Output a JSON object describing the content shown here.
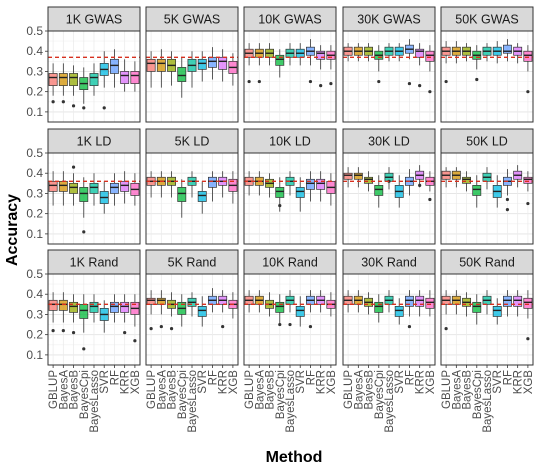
{
  "chart_data": {
    "type": "boxplot",
    "xlabel": "Method",
    "ylabel": "Accuracy",
    "ylim": [
      0.05,
      0.5
    ],
    "yticks": [
      0.1,
      0.2,
      0.3,
      0.4,
      0.5
    ],
    "ytick_labels": [
      "0.1",
      "0.2",
      "0.3",
      "0.4",
      "0.5"
    ],
    "methods": [
      "GBLUP",
      "BayesA",
      "BayesB",
      "BayesCpi",
      "BayesLasso",
      "SVR",
      "RF",
      "KRR",
      "XGB"
    ],
    "method_colors": [
      "#F8766D",
      "#D39200",
      "#93AA00",
      "#00BA38",
      "#00C19F",
      "#00B9E3",
      "#619CFF",
      "#DB72FB",
      "#FF61C3"
    ],
    "reference_line_color": "#D7301F",
    "grid": true,
    "facet_rows": [
      "GWAS",
      "LD",
      "Rand"
    ],
    "facet_cols": [
      "1K",
      "5K",
      "10K",
      "30K",
      "50K"
    ],
    "panels": [
      {
        "title": "1K GWAS",
        "ref": 0.37,
        "medians": [
          0.27,
          0.27,
          0.27,
          0.24,
          0.27,
          0.31,
          0.33,
          0.28,
          0.28
        ],
        "q1": [
          0.23,
          0.23,
          0.23,
          0.21,
          0.23,
          0.28,
          0.29,
          0.24,
          0.24
        ],
        "q3": [
          0.29,
          0.29,
          0.29,
          0.27,
          0.29,
          0.34,
          0.36,
          0.3,
          0.3
        ],
        "low": [
          0.18,
          0.18,
          0.18,
          0.14,
          0.18,
          0.22,
          0.22,
          0.2,
          0.2
        ],
        "high": [
          0.34,
          0.34,
          0.33,
          0.32,
          0.34,
          0.4,
          0.41,
          0.36,
          0.35
        ],
        "outliers": [
          [
            0.15
          ],
          [
            0.15
          ],
          [
            0.13
          ],
          [
            0.12
          ],
          [],
          [
            0.12
          ],
          [],
          [],
          []
        ]
      },
      {
        "title": "5K GWAS",
        "ref": 0.37,
        "medians": [
          0.34,
          0.34,
          0.33,
          0.28,
          0.33,
          0.34,
          0.35,
          0.35,
          0.32
        ],
        "q1": [
          0.3,
          0.3,
          0.3,
          0.25,
          0.3,
          0.31,
          0.32,
          0.31,
          0.29
        ],
        "q3": [
          0.36,
          0.36,
          0.36,
          0.32,
          0.36,
          0.36,
          0.37,
          0.37,
          0.35
        ],
        "low": [
          0.22,
          0.22,
          0.23,
          0.17,
          0.22,
          0.25,
          0.26,
          0.25,
          0.23
        ],
        "high": [
          0.4,
          0.41,
          0.4,
          0.37,
          0.4,
          0.4,
          0.42,
          0.41,
          0.39
        ],
        "outliers": [
          [],
          [],
          [],
          [],
          [],
          [],
          [],
          [],
          []
        ]
      },
      {
        "title": "10K GWAS",
        "ref": 0.37,
        "medians": [
          0.39,
          0.39,
          0.39,
          0.36,
          0.39,
          0.39,
          0.4,
          0.39,
          0.38
        ],
        "q1": [
          0.37,
          0.37,
          0.37,
          0.33,
          0.37,
          0.37,
          0.38,
          0.36,
          0.36
        ],
        "q3": [
          0.41,
          0.41,
          0.41,
          0.38,
          0.41,
          0.41,
          0.42,
          0.4,
          0.4
        ],
        "low": [
          0.33,
          0.33,
          0.33,
          0.27,
          0.33,
          0.33,
          0.33,
          0.31,
          0.31
        ],
        "high": [
          0.44,
          0.44,
          0.44,
          0.41,
          0.44,
          0.44,
          0.46,
          0.43,
          0.43
        ],
        "outliers": [
          [
            0.25
          ],
          [
            0.25
          ],
          [],
          [],
          [],
          [],
          [
            0.25
          ],
          [
            0.23
          ],
          [
            0.24
          ]
        ]
      },
      {
        "title": "30K GWAS",
        "ref": 0.37,
        "medians": [
          0.4,
          0.4,
          0.4,
          0.38,
          0.4,
          0.4,
          0.41,
          0.4,
          0.38
        ],
        "q1": [
          0.38,
          0.38,
          0.38,
          0.36,
          0.38,
          0.38,
          0.39,
          0.37,
          0.35
        ],
        "q3": [
          0.42,
          0.42,
          0.42,
          0.4,
          0.42,
          0.42,
          0.43,
          0.41,
          0.4
        ],
        "low": [
          0.35,
          0.35,
          0.35,
          0.3,
          0.35,
          0.35,
          0.36,
          0.33,
          0.3
        ],
        "high": [
          0.44,
          0.44,
          0.44,
          0.43,
          0.44,
          0.44,
          0.46,
          0.44,
          0.43
        ],
        "outliers": [
          [],
          [],
          [],
          [
            0.25
          ],
          [],
          [],
          [
            0.24
          ],
          [
            0.23
          ],
          [
            0.2
          ]
        ]
      },
      {
        "title": "50K GWAS",
        "ref": 0.37,
        "medians": [
          0.4,
          0.4,
          0.4,
          0.38,
          0.4,
          0.4,
          0.4,
          0.4,
          0.38
        ],
        "q1": [
          0.38,
          0.38,
          0.38,
          0.36,
          0.38,
          0.38,
          0.39,
          0.38,
          0.35
        ],
        "q3": [
          0.42,
          0.42,
          0.42,
          0.4,
          0.42,
          0.42,
          0.43,
          0.42,
          0.4
        ],
        "low": [
          0.34,
          0.34,
          0.35,
          0.31,
          0.35,
          0.34,
          0.35,
          0.34,
          0.3
        ],
        "high": [
          0.45,
          0.45,
          0.44,
          0.43,
          0.44,
          0.45,
          0.46,
          0.44,
          0.43
        ],
        "outliers": [
          [
            0.25
          ],
          [],
          [],
          [
            0.26
          ],
          [],
          [],
          [],
          [],
          [
            0.2
          ]
        ]
      },
      {
        "title": "1K LD",
        "ref": 0.36,
        "medians": [
          0.34,
          0.34,
          0.33,
          0.3,
          0.33,
          0.28,
          0.33,
          0.34,
          0.32
        ],
        "q1": [
          0.31,
          0.31,
          0.3,
          0.26,
          0.3,
          0.25,
          0.3,
          0.31,
          0.29
        ],
        "q3": [
          0.36,
          0.36,
          0.35,
          0.33,
          0.35,
          0.31,
          0.35,
          0.36,
          0.35
        ],
        "low": [
          0.24,
          0.24,
          0.24,
          0.18,
          0.24,
          0.2,
          0.24,
          0.25,
          0.24
        ],
        "high": [
          0.41,
          0.41,
          0.4,
          0.38,
          0.4,
          0.36,
          0.4,
          0.41,
          0.4
        ],
        "outliers": [
          [],
          [],
          [
            0.43
          ],
          [
            0.11
          ],
          [],
          [],
          [],
          [],
          []
        ]
      },
      {
        "title": "5K LD",
        "ref": 0.36,
        "medians": [
          0.36,
          0.36,
          0.36,
          0.3,
          0.36,
          0.29,
          0.36,
          0.36,
          0.34
        ],
        "q1": [
          0.34,
          0.34,
          0.34,
          0.26,
          0.34,
          0.26,
          0.33,
          0.34,
          0.31
        ],
        "q3": [
          0.38,
          0.38,
          0.38,
          0.33,
          0.38,
          0.31,
          0.38,
          0.38,
          0.37
        ],
        "low": [
          0.28,
          0.28,
          0.28,
          0.18,
          0.28,
          0.2,
          0.26,
          0.28,
          0.25
        ],
        "high": [
          0.41,
          0.41,
          0.41,
          0.37,
          0.41,
          0.36,
          0.41,
          0.41,
          0.41
        ],
        "outliers": [
          [],
          [],
          [],
          [],
          [],
          [],
          [],
          [],
          []
        ]
      },
      {
        "title": "10K LD",
        "ref": 0.36,
        "medians": [
          0.36,
          0.36,
          0.35,
          0.31,
          0.36,
          0.31,
          0.35,
          0.35,
          0.33
        ],
        "q1": [
          0.34,
          0.34,
          0.33,
          0.28,
          0.34,
          0.28,
          0.32,
          0.32,
          0.3
        ],
        "q3": [
          0.38,
          0.38,
          0.37,
          0.33,
          0.38,
          0.33,
          0.37,
          0.37,
          0.36
        ],
        "low": [
          0.29,
          0.29,
          0.28,
          0.21,
          0.29,
          0.21,
          0.26,
          0.26,
          0.24
        ],
        "high": [
          0.41,
          0.41,
          0.4,
          0.38,
          0.41,
          0.38,
          0.41,
          0.41,
          0.4
        ],
        "outliers": [
          [],
          [],
          [],
          [
            0.24
          ],
          [],
          [],
          [],
          [],
          []
        ]
      },
      {
        "title": "30K LD",
        "ref": 0.36,
        "medians": [
          0.39,
          0.39,
          0.37,
          0.32,
          0.38,
          0.31,
          0.36,
          0.39,
          0.36
        ],
        "q1": [
          0.37,
          0.37,
          0.35,
          0.29,
          0.36,
          0.28,
          0.34,
          0.37,
          0.34
        ],
        "q3": [
          0.4,
          0.4,
          0.38,
          0.34,
          0.4,
          0.34,
          0.38,
          0.41,
          0.38
        ],
        "low": [
          0.33,
          0.33,
          0.31,
          0.23,
          0.32,
          0.23,
          0.29,
          0.33,
          0.31
        ],
        "high": [
          0.43,
          0.43,
          0.41,
          0.39,
          0.43,
          0.39,
          0.42,
          0.44,
          0.41
        ],
        "outliers": [
          [],
          [],
          [],
          [],
          [
            0.36
          ],
          [],
          [],
          [
            0.34
          ],
          [
            0.27
          ]
        ]
      },
      {
        "title": "50K LD",
        "ref": 0.36,
        "medians": [
          0.39,
          0.39,
          0.37,
          0.32,
          0.38,
          0.31,
          0.36,
          0.39,
          0.37
        ],
        "q1": [
          0.37,
          0.37,
          0.35,
          0.29,
          0.36,
          0.28,
          0.34,
          0.37,
          0.35
        ],
        "q3": [
          0.41,
          0.41,
          0.38,
          0.34,
          0.4,
          0.34,
          0.38,
          0.41,
          0.38
        ],
        "low": [
          0.33,
          0.33,
          0.31,
          0.23,
          0.32,
          0.23,
          0.29,
          0.33,
          0.31
        ],
        "high": [
          0.43,
          0.43,
          0.41,
          0.39,
          0.43,
          0.39,
          0.42,
          0.44,
          0.41
        ],
        "outliers": [
          [],
          [],
          [],
          [],
          [],
          [],
          [
            0.27,
            0.22
          ],
          [],
          [
            0.25
          ]
        ]
      },
      {
        "title": "1K Rand",
        "ref": 0.35,
        "medians": [
          0.35,
          0.35,
          0.34,
          0.32,
          0.34,
          0.3,
          0.34,
          0.34,
          0.33
        ],
        "q1": [
          0.32,
          0.32,
          0.31,
          0.28,
          0.31,
          0.27,
          0.31,
          0.31,
          0.3
        ],
        "q3": [
          0.37,
          0.37,
          0.36,
          0.35,
          0.36,
          0.33,
          0.36,
          0.36,
          0.36
        ],
        "low": [
          0.26,
          0.26,
          0.26,
          0.21,
          0.26,
          0.21,
          0.26,
          0.26,
          0.24
        ],
        "high": [
          0.41,
          0.41,
          0.4,
          0.4,
          0.4,
          0.37,
          0.4,
          0.4,
          0.4
        ],
        "outliers": [
          [
            0.22
          ],
          [
            0.22
          ],
          [
            0.21
          ],
          [
            0.13
          ],
          [],
          [],
          [],
          [
            0.21
          ],
          [
            0.17
          ]
        ]
      },
      {
        "title": "5K Rand",
        "ref": 0.35,
        "medians": [
          0.37,
          0.37,
          0.35,
          0.33,
          0.36,
          0.32,
          0.37,
          0.37,
          0.35
        ],
        "q1": [
          0.35,
          0.35,
          0.33,
          0.3,
          0.34,
          0.29,
          0.35,
          0.35,
          0.33
        ],
        "q3": [
          0.38,
          0.38,
          0.37,
          0.36,
          0.38,
          0.34,
          0.39,
          0.39,
          0.37
        ],
        "low": [
          0.3,
          0.3,
          0.29,
          0.24,
          0.29,
          0.24,
          0.31,
          0.31,
          0.28
        ],
        "high": [
          0.42,
          0.42,
          0.41,
          0.4,
          0.41,
          0.39,
          0.43,
          0.42,
          0.41
        ],
        "outliers": [
          [
            0.23
          ],
          [
            0.24
          ],
          [
            0.23
          ],
          [],
          [],
          [],
          [],
          [
            0.24
          ],
          []
        ]
      },
      {
        "title": "10K Rand",
        "ref": 0.35,
        "medians": [
          0.37,
          0.37,
          0.35,
          0.34,
          0.37,
          0.32,
          0.37,
          0.37,
          0.35
        ],
        "q1": [
          0.35,
          0.35,
          0.33,
          0.31,
          0.35,
          0.29,
          0.35,
          0.35,
          0.33
        ],
        "q3": [
          0.39,
          0.39,
          0.37,
          0.36,
          0.39,
          0.34,
          0.39,
          0.39,
          0.37
        ],
        "low": [
          0.31,
          0.31,
          0.29,
          0.25,
          0.31,
          0.24,
          0.31,
          0.31,
          0.29
        ],
        "high": [
          0.42,
          0.42,
          0.41,
          0.4,
          0.42,
          0.39,
          0.42,
          0.42,
          0.41
        ],
        "outliers": [
          [],
          [],
          [],
          [
            0.25
          ],
          [
            0.25
          ],
          [],
          [
            0.24
          ],
          [],
          []
        ]
      },
      {
        "title": "30K Rand",
        "ref": 0.35,
        "medians": [
          0.37,
          0.37,
          0.36,
          0.34,
          0.37,
          0.32,
          0.37,
          0.37,
          0.36
        ],
        "q1": [
          0.35,
          0.35,
          0.34,
          0.31,
          0.35,
          0.29,
          0.34,
          0.34,
          0.33
        ],
        "q3": [
          0.39,
          0.39,
          0.38,
          0.36,
          0.39,
          0.34,
          0.39,
          0.39,
          0.38
        ],
        "low": [
          0.31,
          0.31,
          0.3,
          0.26,
          0.31,
          0.25,
          0.29,
          0.29,
          0.29
        ],
        "high": [
          0.42,
          0.42,
          0.41,
          0.4,
          0.42,
          0.38,
          0.42,
          0.42,
          0.42
        ],
        "outliers": [
          [],
          [],
          [],
          [],
          [],
          [],
          [
            0.24
          ],
          [],
          []
        ]
      },
      {
        "title": "50K Rand",
        "ref": 0.35,
        "medians": [
          0.37,
          0.37,
          0.36,
          0.34,
          0.37,
          0.32,
          0.37,
          0.37,
          0.36
        ],
        "q1": [
          0.35,
          0.35,
          0.34,
          0.31,
          0.35,
          0.29,
          0.34,
          0.34,
          0.33
        ],
        "q3": [
          0.39,
          0.39,
          0.38,
          0.36,
          0.39,
          0.34,
          0.39,
          0.39,
          0.38
        ],
        "low": [
          0.3,
          0.3,
          0.29,
          0.25,
          0.3,
          0.25,
          0.29,
          0.29,
          0.28
        ],
        "high": [
          0.42,
          0.42,
          0.41,
          0.4,
          0.42,
          0.38,
          0.42,
          0.42,
          0.42
        ],
        "outliers": [
          [
            0.23
          ],
          [],
          [],
          [],
          [],
          [],
          [],
          [],
          [
            0.18
          ]
        ]
      }
    ]
  }
}
